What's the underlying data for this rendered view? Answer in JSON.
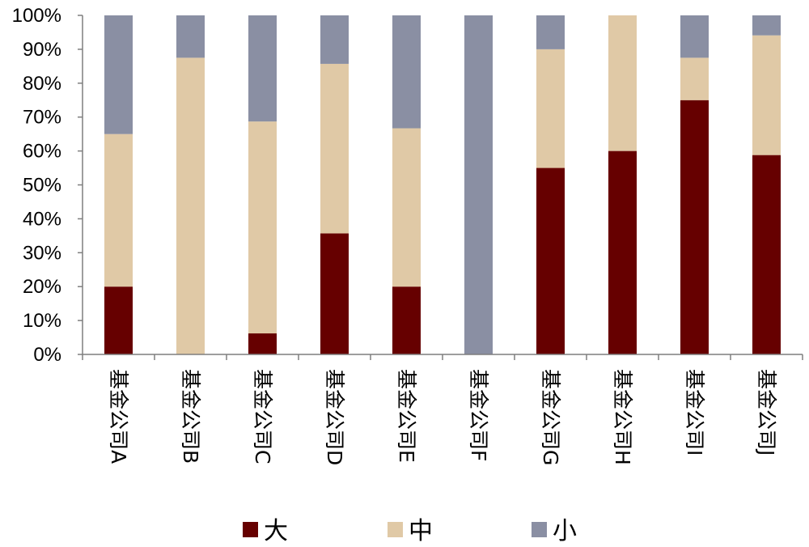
{
  "chart_data": {
    "type": "bar",
    "stacked": true,
    "categories": [
      "基金公司A",
      "基金公司B",
      "基金公司C",
      "基金公司D",
      "基金公司E",
      "基金公司F",
      "基金公司G",
      "基金公司H",
      "基金公司I",
      "基金公司J"
    ],
    "series": [
      {
        "name": "大",
        "color": "#660000",
        "values": [
          20,
          0,
          6.2,
          35.7,
          20,
          0,
          55,
          60,
          75,
          58.8
        ]
      },
      {
        "name": "中",
        "color": "#E0C9A6",
        "values": [
          45,
          87.5,
          62.5,
          50,
          46.7,
          0,
          35,
          40,
          12.5,
          35.3
        ]
      },
      {
        "name": "小",
        "color": "#8A8FA3",
        "values": [
          35,
          12.5,
          31.3,
          14.3,
          33.3,
          100,
          10,
          0,
          12.5,
          5.9
        ]
      }
    ],
    "y_ticks": [
      "0%",
      "10%",
      "20%",
      "30%",
      "40%",
      "50%",
      "60%",
      "70%",
      "80%",
      "90%",
      "100%"
    ],
    "ylim": [
      0,
      100
    ],
    "legend_position": "bottom",
    "grid": false,
    "title": "",
    "xlabel": "",
    "ylabel": ""
  }
}
